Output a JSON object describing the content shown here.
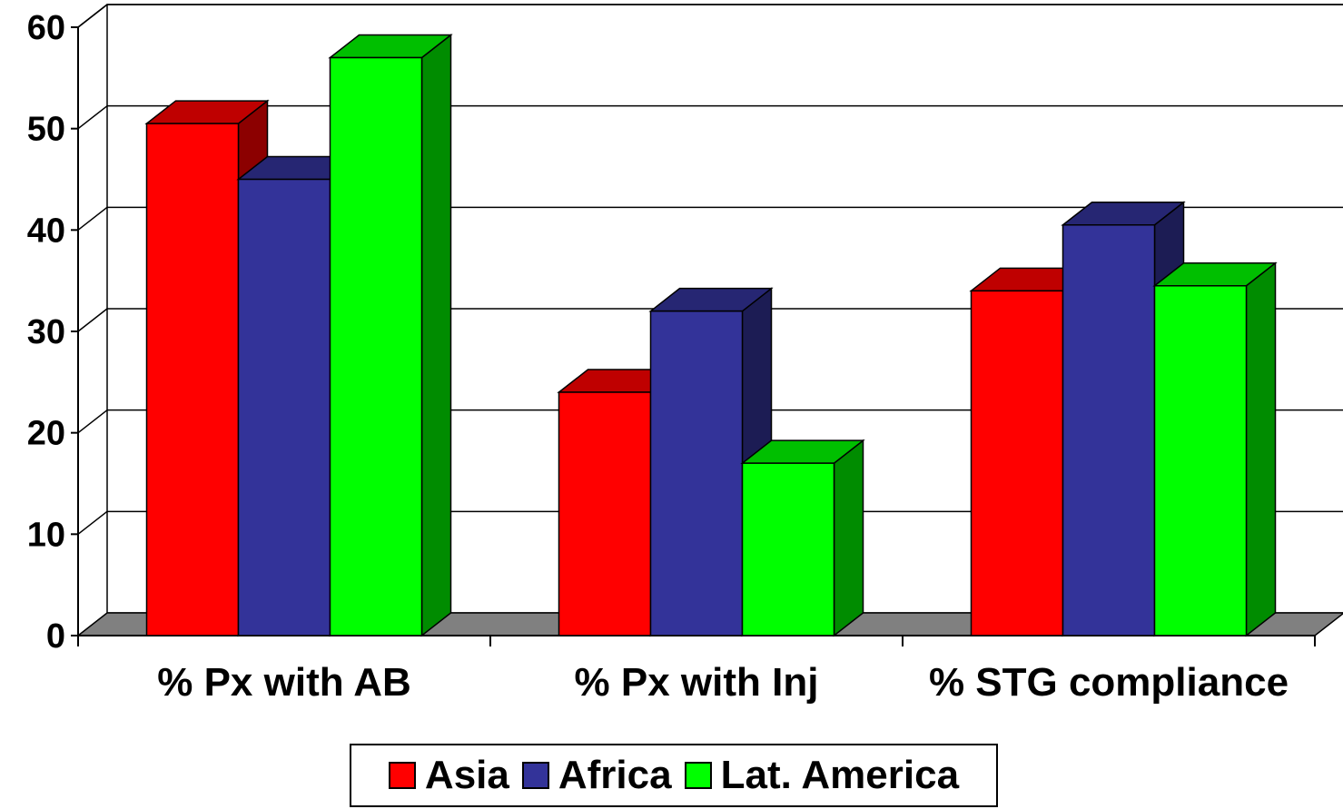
{
  "chart_data": {
    "type": "bar",
    "categories": [
      "% Px with AB",
      "% Px with Inj",
      "% STG compliance"
    ],
    "series": [
      {
        "name": "Asia",
        "values": [
          50.5,
          24,
          34
        ],
        "color": "#ff0000"
      },
      {
        "name": "Africa",
        "values": [
          45,
          32,
          40.5
        ],
        "color": "#333399"
      },
      {
        "name": "Lat. America",
        "values": [
          57,
          17,
          34.5
        ],
        "color": "#00ff00"
      }
    ],
    "ylim": [
      0,
      60
    ],
    "yticks": [
      "0",
      "10",
      "20",
      "30",
      "40",
      "50",
      "60"
    ],
    "grid": true,
    "three_d": true,
    "legend_position": "bottom",
    "title": "",
    "xlabel": "",
    "ylabel": ""
  }
}
